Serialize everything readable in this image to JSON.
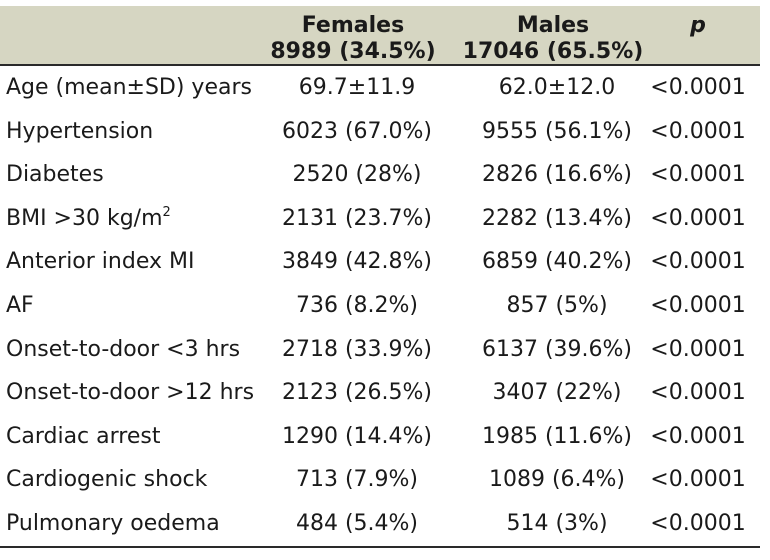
{
  "header": {
    "females": {
      "title": "Females",
      "count": "8989 (34.5%)"
    },
    "males": {
      "title": "Males",
      "count": "17046 (65.5%)"
    },
    "p": "p"
  },
  "rows": [
    {
      "label": "Age (mean±SD) years",
      "females": "69.7±11.9",
      "males": "62.0±12.0",
      "p": "<0.0001"
    },
    {
      "label": "Hypertension",
      "females": "6023 (67.0%)",
      "males": "9555 (56.1%)",
      "p": "<0.0001"
    },
    {
      "label": "Diabetes",
      "females": "2520 (28%)",
      "males": "2826 (16.6%)",
      "p": "<0.0001"
    },
    {
      "label": "BMI >30 kg/m",
      "label_sup": "2",
      "females": "2131 (23.7%)",
      "males": "2282 (13.4%)",
      "p": "<0.0001"
    },
    {
      "label": "Anterior index MI",
      "females": "3849 (42.8%)",
      "males": "6859 (40.2%)",
      "p": "<0.0001"
    },
    {
      "label": "AF",
      "females": "736 (8.2%)",
      "males": "857 (5%)",
      "p": "<0.0001"
    },
    {
      "label": "Onset-to-door <3 hrs",
      "females": "2718 (33.9%)",
      "males": "6137 (39.6%)",
      "p": "<0.0001"
    },
    {
      "label": "Onset-to-door >12 hrs",
      "females": "2123 (26.5%)",
      "males": "3407 (22%)",
      "p": "<0.0001"
    },
    {
      "label": "Cardiac arrest",
      "females": "1290 (14.4%)",
      "males": "1985 (11.6%)",
      "p": "<0.0001"
    },
    {
      "label": "Cardiogenic shock",
      "females": "713 (7.9%)",
      "males": "1089 (6.4%)",
      "p": "<0.0001"
    },
    {
      "label": "Pulmonary oedema",
      "females": "484 (5.4%)",
      "males": "514 (3%)",
      "p": "<0.0001"
    }
  ]
}
